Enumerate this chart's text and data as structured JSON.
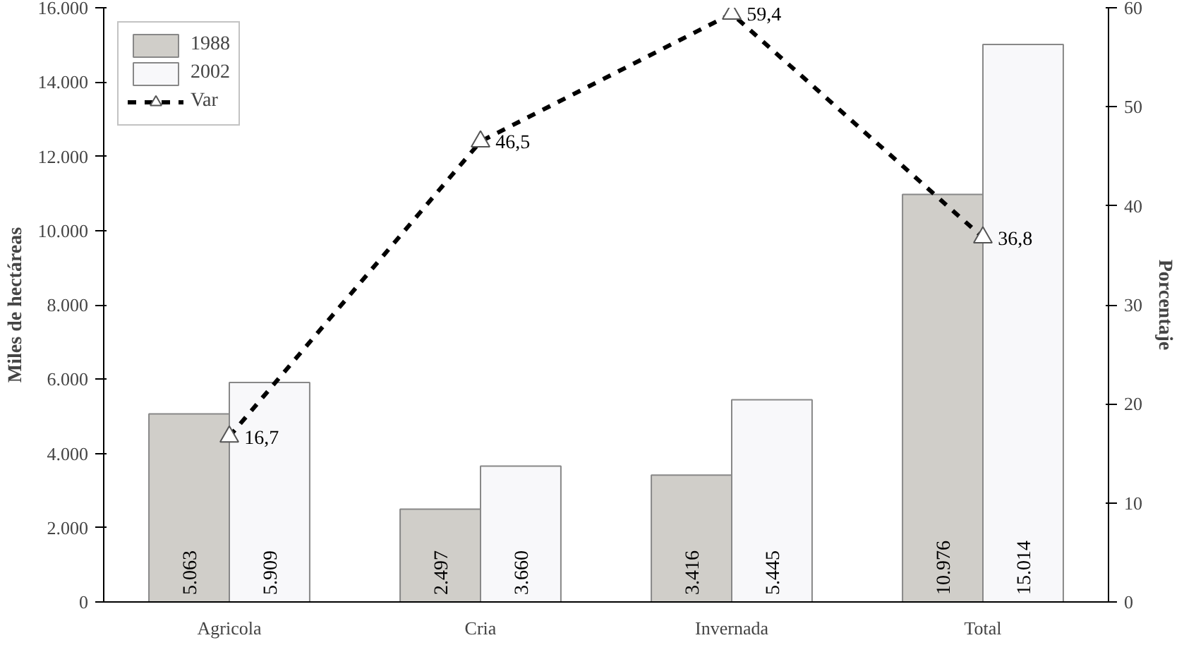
{
  "chart_data": {
    "type": "bar",
    "categories": [
      "Agricola",
      "Cria",
      "Invernada",
      "Total"
    ],
    "ylabel": "Miles de hectáreas",
    "y2label": "Porcentaje",
    "ylim": [
      0,
      16000
    ],
    "yticks": [
      {
        "value": 0,
        "label": "0"
      },
      {
        "value": 2000,
        "label": "2.000"
      },
      {
        "value": 4000,
        "label": "4.000"
      },
      {
        "value": 6000,
        "label": "6.000"
      },
      {
        "value": 8000,
        "label": "8.000"
      },
      {
        "value": 10000,
        "label": "10.000"
      },
      {
        "value": 12000,
        "label": "12.000"
      },
      {
        "value": 14000,
        "label": "14.000"
      },
      {
        "value": 16000,
        "label": "16.000"
      }
    ],
    "y2lim": [
      0,
      60
    ],
    "y2ticks": [
      0,
      10,
      20,
      30,
      40,
      50,
      60
    ],
    "grid": false,
    "legend": "top left",
    "series": [
      {
        "name": "1988",
        "color": "#d0cec9",
        "values": [
          5063,
          2497,
          3416,
          10976
        ],
        "value_labels": [
          "5.063",
          "2.497",
          "3.416",
          "10.976"
        ]
      },
      {
        "name": "2002",
        "color": "#f8f8fa",
        "values": [
          5909,
          3660,
          5445,
          15014
        ],
        "value_labels": [
          "5.909",
          "3.660",
          "5.445",
          "15.014"
        ]
      },
      {
        "name": "Var",
        "type": "line",
        "axis": "y2",
        "color": "#000000",
        "marker": "triangle",
        "line_style": "dashed",
        "values": [
          16.7,
          46.5,
          59.4,
          36.8
        ],
        "value_labels": [
          "16,7",
          "46,5",
          "59,4",
          "36,8"
        ]
      }
    ]
  }
}
